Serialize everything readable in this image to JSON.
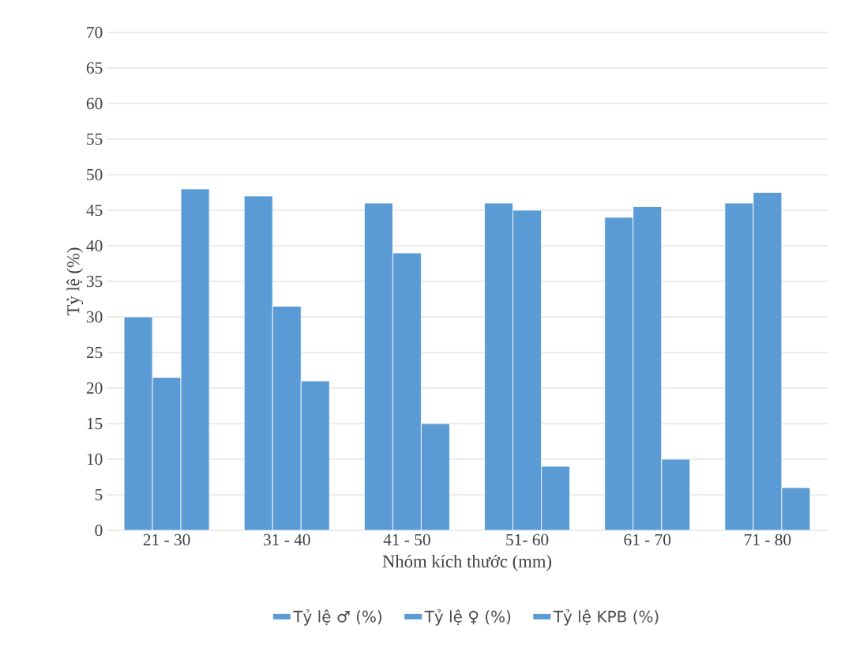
{
  "chart_data": {
    "type": "bar",
    "xlabel": "Nhóm kích thước (mm)",
    "ylabel": "Tỷ lệ (%)",
    "categories": [
      "21 - 30",
      "31 - 40",
      "41 - 50",
      "51- 60",
      "61 - 70",
      "71 - 80"
    ],
    "series": [
      {
        "name": "Tỷ lệ ♂ (%)",
        "color": "#5b9bd5",
        "values": [
          30,
          47,
          46,
          46,
          44,
          46
        ]
      },
      {
        "name": "Tỷ lệ ♀ (%)",
        "color": "#5b9bd5",
        "values": [
          21.5,
          31.5,
          39,
          45,
          45.5,
          47.5
        ]
      },
      {
        "name": "Tỷ lệ KPB (%)",
        "color": "#5b9bd5",
        "values": [
          48,
          21,
          15,
          9,
          10,
          6
        ]
      }
    ],
    "ylim": [
      0,
      70
    ],
    "yticks": [
      0,
      5,
      10,
      15,
      20,
      25,
      30,
      35,
      40,
      45,
      50,
      55,
      60,
      65,
      70
    ],
    "grid": "y",
    "legend": "bottom"
  }
}
